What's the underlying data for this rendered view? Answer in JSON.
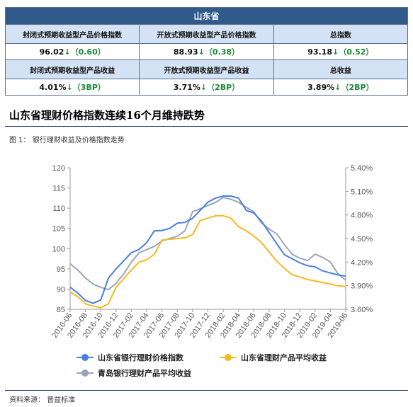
{
  "summary": {
    "header": "山东省",
    "row1_labels": [
      "封闭式预期收益型产品价格指数",
      "开放式预期收益型产品价格指数",
      "总指数"
    ],
    "row1_values": [
      {
        "value": "96.02",
        "arrow": "↓",
        "change": "（0.60）"
      },
      {
        "value": "88.93",
        "arrow": "↓",
        "change": "（0.38）"
      },
      {
        "value": "93.18",
        "arrow": "↓",
        "change": "（0.52）"
      }
    ],
    "row2_labels": [
      "封闭式预期收益型产品收益",
      "开放式预期收益型产品收益",
      "总收益"
    ],
    "row2_values": [
      {
        "value": "4.01%",
        "arrow": "↓",
        "change": "（3BP）"
      },
      {
        "value": "3.71%",
        "arrow": "↓",
        "change": "（2BP）"
      },
      {
        "value": "3.89%",
        "arrow": "↓",
        "change": "（2BP）"
      }
    ]
  },
  "section_title": "山东省理财价格指数连续16个月维持跌势",
  "figure_caption": "图 1：  银行理财收益及价格指数走势",
  "source_note": "资料来源：  普益标准",
  "colors": {
    "header_bg": "#2f5a8a",
    "label_bg": "#d3e2f4",
    "series_price_index": "#4a7fe0",
    "series_shandong_yield": "#f5b921",
    "series_qingdao_yield": "#9aa5b8",
    "down_arrow": "#1b8a37"
  },
  "chart_data": {
    "type": "line",
    "x": [
      "2016-06",
      "2016-07",
      "2016-08",
      "2016-09",
      "2016-10",
      "2016-11",
      "2016-12",
      "2017-01",
      "2017-02",
      "2017-03",
      "2017-04",
      "2017-05",
      "2017-06",
      "2017-07",
      "2017-08",
      "2017-09",
      "2017-10",
      "2017-11",
      "2017-12",
      "2018-01",
      "2018-02",
      "2018-03",
      "2018-04",
      "2018-05",
      "2018-06",
      "2018-07",
      "2018-08",
      "2018-09",
      "2018-10",
      "2018-11",
      "2018-12",
      "2019-01",
      "2019-02",
      "2019-03",
      "2019-04",
      "2019-05",
      "2019-06"
    ],
    "x_tick_labels": [
      "2016-06",
      "2016-08",
      "2016-10",
      "2016-12",
      "2017-02",
      "2017-04",
      "2017-06",
      "2017-08",
      "2017-10",
      "2017-12",
      "2018-02",
      "2018-04",
      "2018-06",
      "2018-08",
      "2018-10",
      "2018-12",
      "2019-02",
      "2019-04",
      "2019-06"
    ],
    "y_left_lim": [
      85,
      120
    ],
    "y_left_ticks": [
      "85",
      "90",
      "95",
      "100",
      "105",
      "110",
      "115",
      "120"
    ],
    "y_right_lim": [
      3.6,
      5.4
    ],
    "y_right_ticks": [
      "3.60%",
      "3.90%",
      "4.20%",
      "4.50%",
      "4.80%",
      "5.10%",
      "5.40%"
    ],
    "series": [
      {
        "name": "山东省银行理财价格指数",
        "axis": "left",
        "values": [
          90.5,
          89.0,
          87.2,
          86.5,
          87.3,
          92.7,
          95.0,
          97.0,
          99.0,
          99.8,
          101.5,
          104.4,
          104.5,
          105.0,
          106.3,
          106.5,
          107.5,
          109.5,
          111.5,
          112.5,
          113.0,
          113.0,
          112.5,
          109.5,
          108.8,
          106.8,
          104.0,
          101.2,
          98.5,
          97.5,
          96.5,
          95.8,
          95.5,
          94.5,
          94.0,
          93.5,
          93.2
        ]
      },
      {
        "name": "山东省理财产品平均收益",
        "axis": "right",
        "values": [
          3.82,
          3.76,
          3.67,
          3.64,
          3.62,
          3.67,
          3.88,
          3.99,
          4.1,
          4.2,
          4.23,
          4.3,
          4.48,
          4.49,
          4.5,
          4.51,
          4.55,
          4.73,
          4.76,
          4.79,
          4.79,
          4.76,
          4.65,
          4.6,
          4.53,
          4.45,
          4.33,
          4.21,
          4.12,
          4.04,
          4.01,
          3.98,
          3.96,
          3.94,
          3.92,
          3.9,
          3.89
        ]
      },
      {
        "name": "青岛银行理财产品平均收益",
        "axis": "right",
        "values": [
          4.18,
          4.1,
          4.0,
          3.92,
          3.88,
          3.85,
          3.93,
          4.05,
          4.2,
          4.32,
          4.36,
          4.4,
          4.47,
          4.5,
          4.53,
          4.6,
          4.84,
          4.88,
          4.92,
          4.96,
          5.02,
          5.0,
          4.96,
          4.9,
          4.84,
          4.7,
          4.62,
          4.56,
          4.42,
          4.3,
          4.25,
          4.22,
          4.3,
          4.26,
          4.2,
          4.05,
          3.97
        ]
      }
    ],
    "legend_position": "bottom",
    "grid": false
  }
}
